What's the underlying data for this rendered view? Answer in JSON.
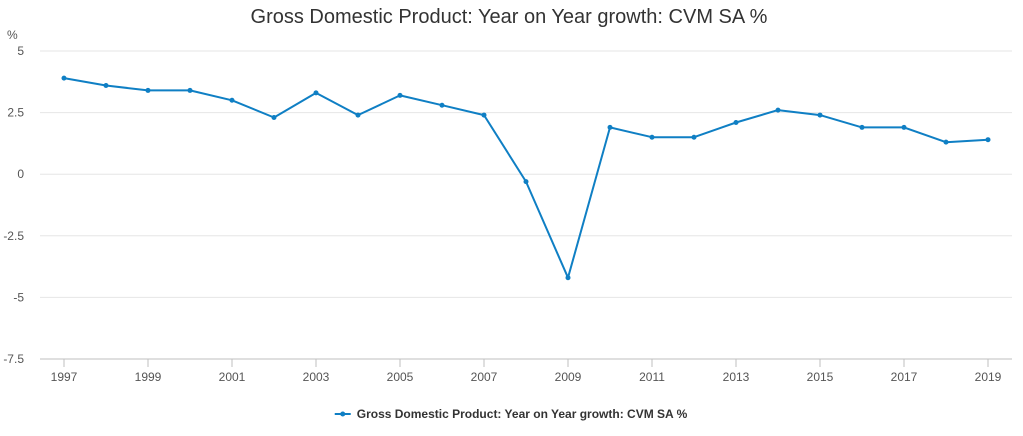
{
  "chart_data": {
    "type": "line",
    "title": "Gross Domestic Product: Year on Year growth: CVM SA %",
    "ylabel": "%",
    "xlabel": "",
    "ylim": [
      -7.5,
      5
    ],
    "yticks": [
      "5",
      "2.5",
      "0",
      "-2.5",
      "-5",
      "-7.5"
    ],
    "ytick_values": [
      5,
      2.5,
      0,
      -2.5,
      -5,
      -7.5
    ],
    "xlim": [
      1997,
      2019
    ],
    "xticks": [
      "1997",
      "1999",
      "2001",
      "2003",
      "2005",
      "2007",
      "2009",
      "2011",
      "2013",
      "2015",
      "2017",
      "2019"
    ],
    "xtick_values": [
      1997,
      1999,
      2001,
      2003,
      2005,
      2007,
      2009,
      2011,
      2013,
      2015,
      2017,
      2019
    ],
    "grid": true,
    "legend_position": "bottom-center",
    "series": [
      {
        "name": "Gross Domestic Product: Year on Year growth: CVM SA %",
        "color": "#0f7fc4",
        "x": [
          1997,
          1998,
          1999,
          2000,
          2001,
          2002,
          2003,
          2004,
          2005,
          2006,
          2007,
          2008,
          2009,
          2010,
          2011,
          2012,
          2013,
          2014,
          2015,
          2016,
          2017,
          2018,
          2019
        ],
        "values": [
          3.9,
          3.6,
          3.4,
          3.4,
          3.0,
          2.3,
          3.3,
          2.4,
          3.2,
          2.8,
          2.4,
          -0.3,
          -4.2,
          1.9,
          1.5,
          1.5,
          2.1,
          2.6,
          2.4,
          1.9,
          1.9,
          1.3,
          1.4
        ]
      }
    ]
  }
}
